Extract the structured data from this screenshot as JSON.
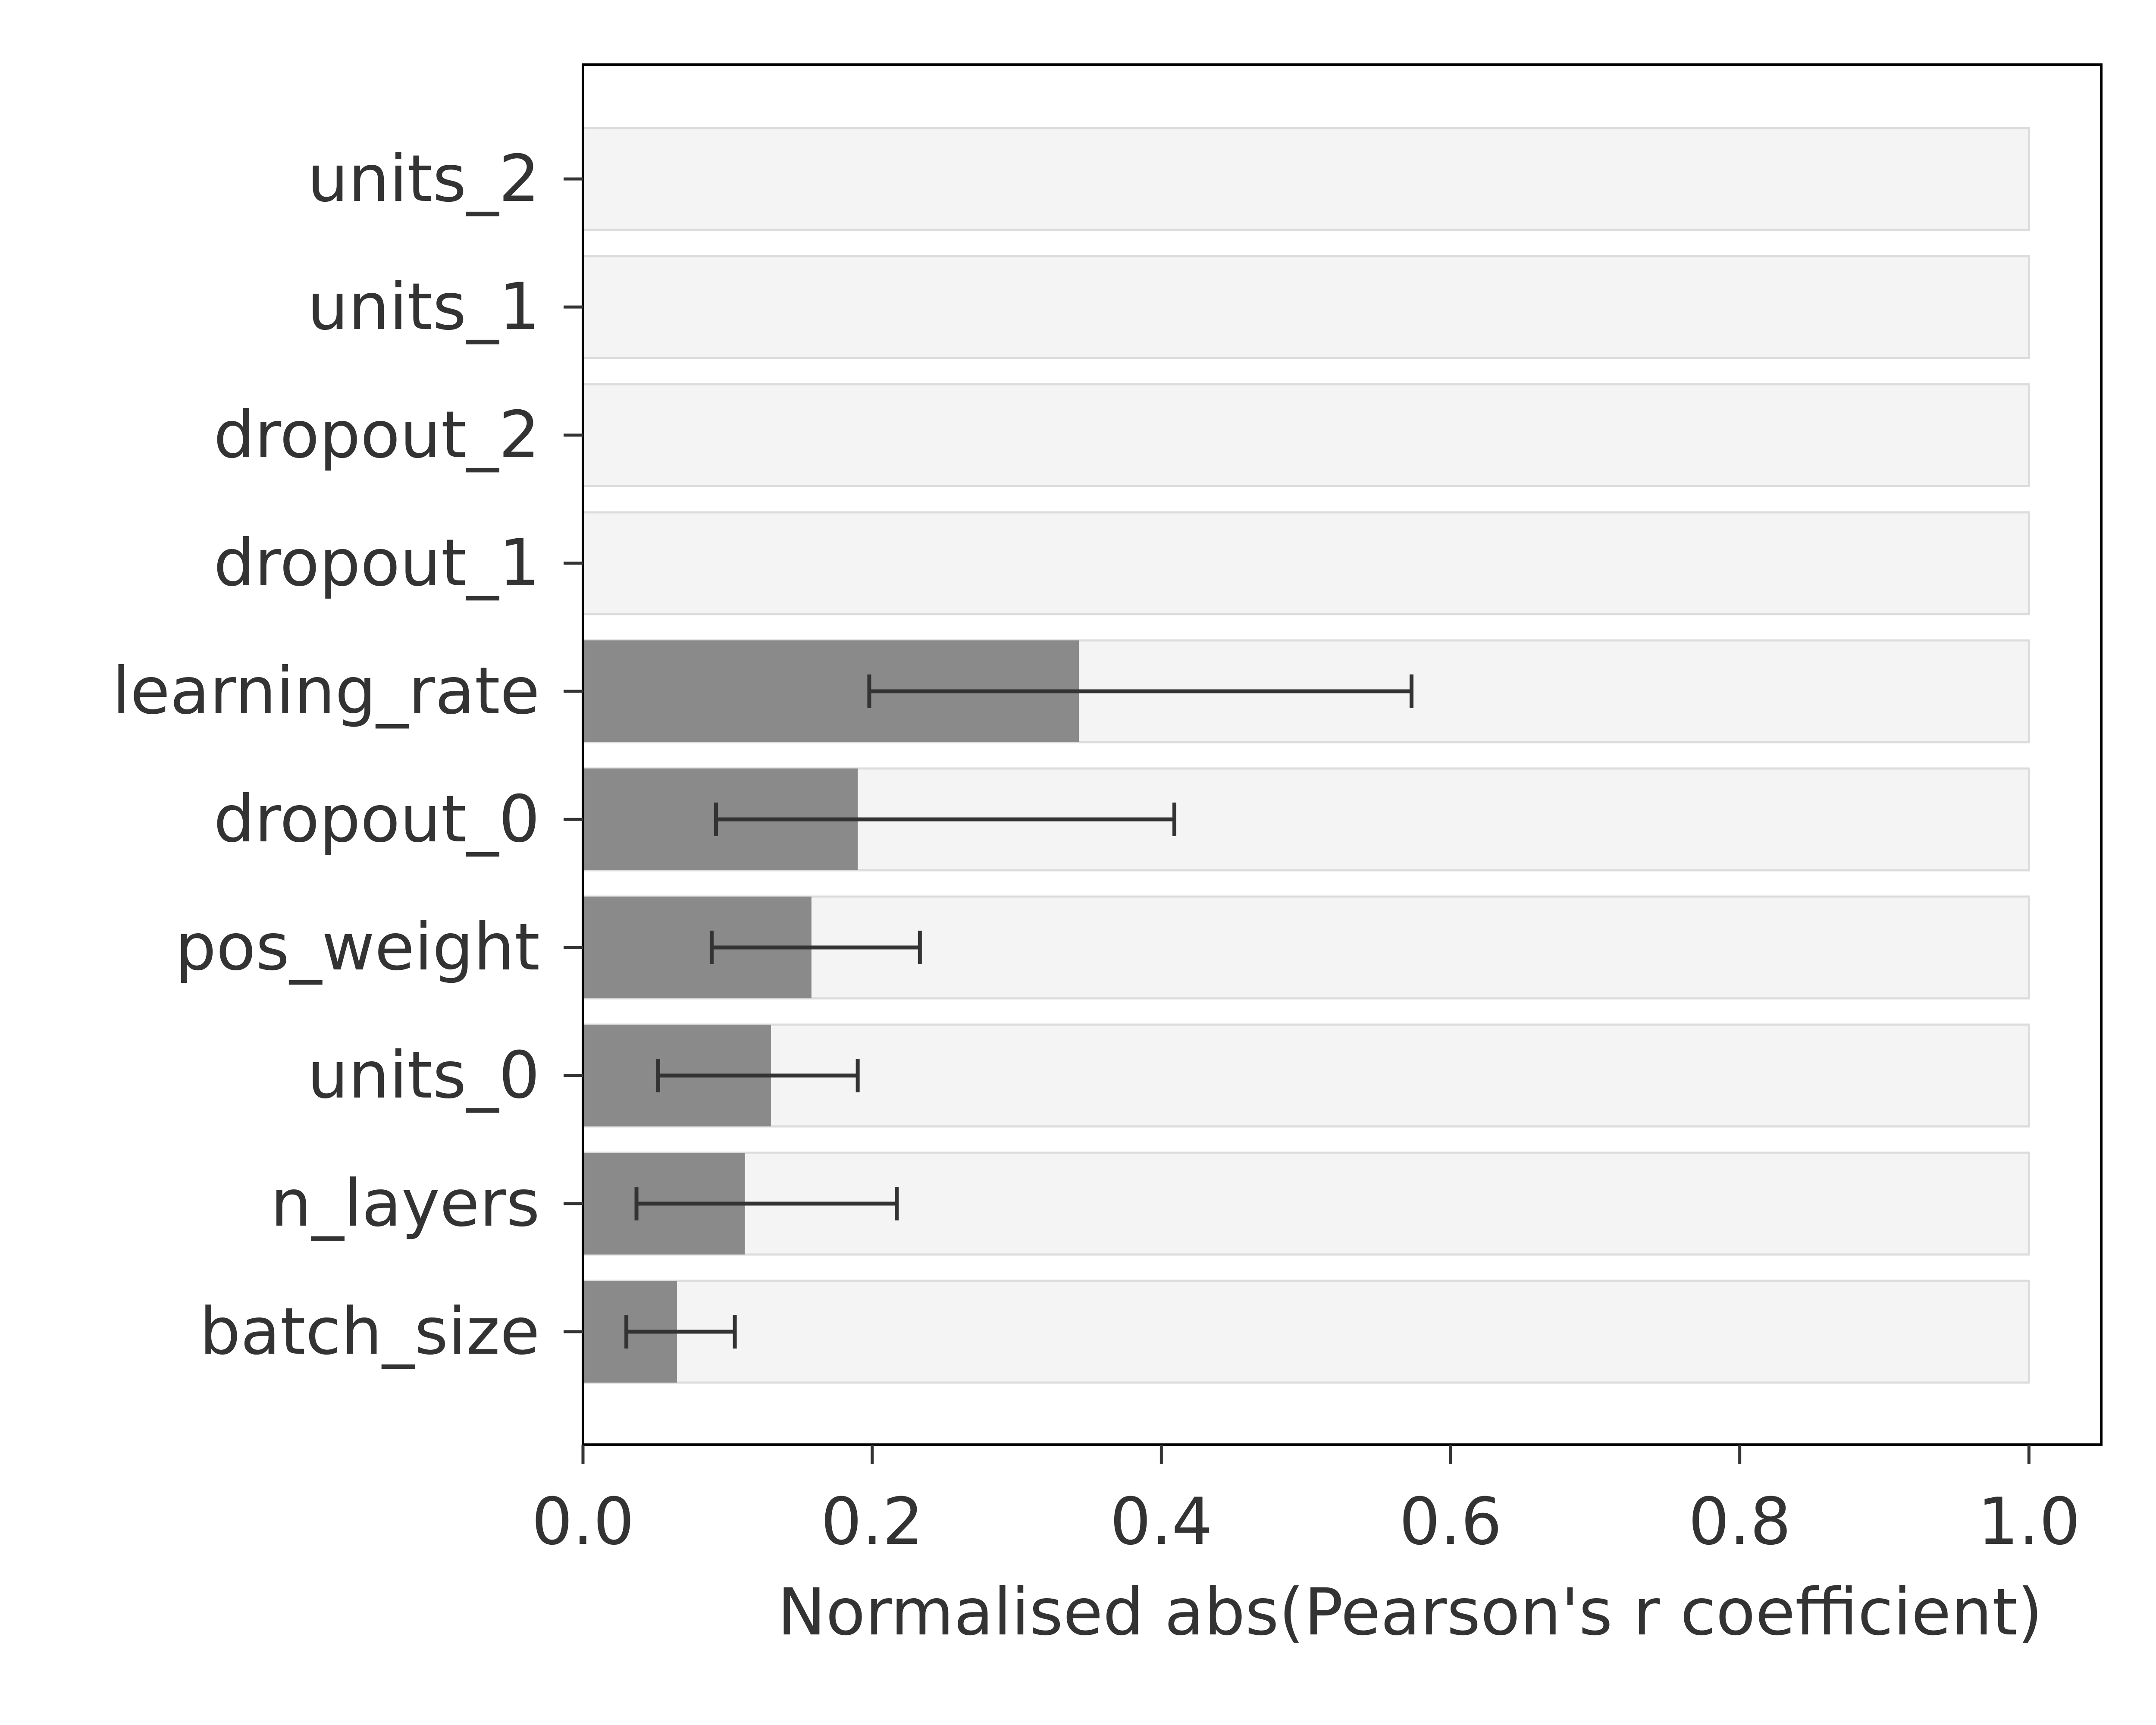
{
  "chart_data": {
    "type": "bar",
    "orientation": "horizontal",
    "title": "",
    "xlabel": "Normalised abs(Pearson's r coefficient)",
    "ylabel": "",
    "xlim": [
      0.0,
      1.05
    ],
    "xticks": [
      "0.0",
      "0.2",
      "0.4",
      "0.6",
      "0.8",
      "1.0"
    ],
    "grid": false,
    "background_bar_value": 1.0,
    "colors": {
      "bar": "#8a8a8a",
      "background_bar": "#f4f4f4",
      "background_bar_edge": "#dcdcdc",
      "error_bar": "#333333",
      "axis": "#000000",
      "text": "#333333"
    },
    "categories": [
      "units_2",
      "units_1",
      "dropout_2",
      "dropout_1",
      "learning_rate",
      "dropout_0",
      "pos_weight",
      "units_0",
      "n_layers",
      "batch_size"
    ],
    "values": [
      0.0,
      0.0,
      0.0,
      0.0,
      0.343,
      0.19,
      0.158,
      0.13,
      0.112,
      0.065
    ],
    "error_low": [
      null,
      null,
      null,
      null,
      0.198,
      0.092,
      0.089,
      0.052,
      0.037,
      0.03
    ],
    "error_high": [
      null,
      null,
      null,
      null,
      0.573,
      0.409,
      0.233,
      0.19,
      0.217,
      0.105
    ]
  }
}
